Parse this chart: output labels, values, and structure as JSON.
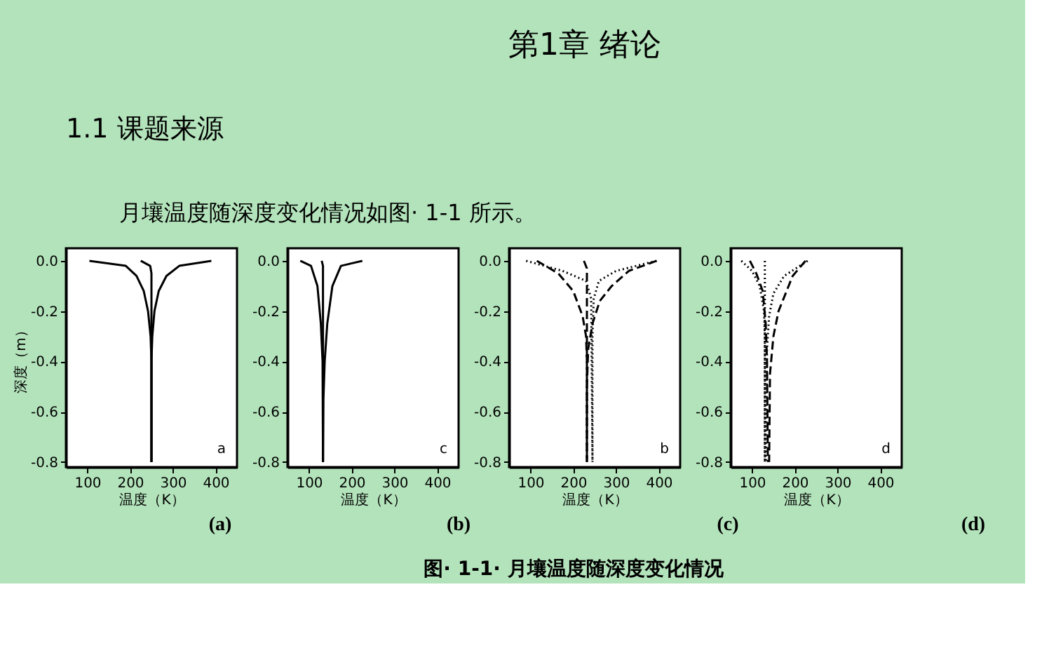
{
  "chart_data": [
    {
      "type": "line",
      "xlabel": "温度（K）",
      "ylabel": "深度（m）",
      "xlim": [
        50,
        450
      ],
      "ylim": [
        -0.82,
        0.05
      ],
      "xticks": [
        100,
        200,
        300,
        400
      ],
      "yticks": [
        {
          "value": 0,
          "label": "0.0"
        },
        {
          "value": -0.2,
          "label": "-0.2"
        },
        {
          "value": -0.4,
          "label": "-0.4"
        },
        {
          "value": -0.6,
          "label": "-0.6"
        },
        {
          "value": -0.8,
          "label": "-0.8"
        }
      ],
      "grid": false,
      "marker": "none",
      "annotations": [
        "a",
        "(a)",
        "第1章  绪论",
        "1.1 课题来源",
        "月壤温度随深度变化情况如图· 1-1 所示。",
        "图· 1-1· 月壤温度随深度变化情况"
      ],
      "series": [
        {
          "color": "#000000",
          "line_style": "solid",
          "x": [
            105,
            190,
            215,
            232,
            242,
            248,
            250,
            250
          ],
          "values": [
            0,
            -0.02,
            -0.06,
            -0.12,
            -0.2,
            -0.3,
            -0.4,
            -0.8
          ]
        },
        {
          "color": "#000000",
          "line_style": "solid",
          "x": [
            390,
            315,
            285,
            267,
            257,
            252,
            250,
            250
          ],
          "values": [
            0,
            -0.02,
            -0.06,
            -0.12,
            -0.2,
            -0.3,
            -0.4,
            -0.8
          ]
        },
        {
          "color": "#000000",
          "line_style": "solid",
          "x": [
            225,
            247,
            250,
            250
          ],
          "values": [
            0,
            -0.02,
            -0.05,
            -0.8
          ]
        }
      ]
    },
    {
      "type": "line",
      "xlabel": "温度（K）",
      "xlim": [
        50,
        450
      ],
      "ylim": [
        -0.82,
        0.05
      ],
      "xticks": [
        100,
        200,
        300,
        400
      ],
      "yticks": [
        {
          "value": 0,
          "label": "0.0"
        },
        {
          "value": -0.2,
          "label": "-0.2"
        },
        {
          "value": -0.4,
          "label": "-0.4"
        },
        {
          "value": -0.6,
          "label": "-0.6"
        },
        {
          "value": -0.8,
          "label": "-0.8"
        }
      ],
      "grid": false,
      "marker": "none",
      "annotations": [
        "c",
        "(b)"
      ],
      "series": [
        {
          "color": "#000000",
          "line_style": "solid",
          "x": [
            80,
            105,
            120,
            128,
            132,
            133
          ],
          "values": [
            0,
            -0.02,
            -0.1,
            -0.25,
            -0.4,
            -0.8
          ]
        },
        {
          "color": "#000000",
          "line_style": "solid",
          "x": [
            225,
            175,
            155,
            143,
            137,
            134,
            133
          ],
          "values": [
            0,
            -0.02,
            -0.1,
            -0.25,
            -0.4,
            -0.55,
            -0.8
          ]
        },
        {
          "color": "#000000",
          "line_style": "solid",
          "x": [
            130,
            133,
            133
          ],
          "values": [
            0,
            -0.02,
            -0.8
          ]
        }
      ]
    },
    {
      "type": "line",
      "xlabel": "温度（K）",
      "xlim": [
        50,
        450
      ],
      "ylim": [
        -0.82,
        0.05
      ],
      "xticks": [
        100,
        200,
        300,
        400
      ],
      "yticks": [
        {
          "value": 0,
          "label": "0.0"
        },
        {
          "value": -0.2,
          "label": "-0.2"
        },
        {
          "value": -0.4,
          "label": "-0.4"
        },
        {
          "value": -0.6,
          "label": "-0.6"
        },
        {
          "value": -0.8,
          "label": "-0.8"
        }
      ],
      "grid": false,
      "marker": "none",
      "annotations": [
        "b",
        "(c)"
      ],
      "series": [
        {
          "color": "#000000",
          "line_style": "dashed",
          "x": [
            115,
            165,
            200,
            222,
            230,
            232,
            232
          ],
          "values": [
            0,
            -0.05,
            -0.12,
            -0.22,
            -0.3,
            -0.4,
            -0.8
          ]
        },
        {
          "color": "#000000",
          "line_style": "dashed",
          "x": [
            395,
            330,
            290,
            262,
            245,
            235,
            232,
            232
          ],
          "values": [
            0,
            -0.04,
            -0.1,
            -0.16,
            -0.25,
            -0.35,
            -0.5,
            -0.8
          ]
        },
        {
          "color": "#000000",
          "line_style": "dotted",
          "x": [
            90,
            175,
            230,
            242,
            245
          ],
          "values": [
            0,
            -0.04,
            -0.08,
            -0.15,
            -0.8
          ]
        },
        {
          "color": "#000000",
          "line_style": "dotted",
          "x": [
            395,
            300,
            260,
            248,
            245,
            245
          ],
          "values": [
            0,
            -0.04,
            -0.08,
            -0.15,
            -0.3,
            -0.8
          ]
        },
        {
          "color": "#000000",
          "line_style": "dashed",
          "x": [
            225,
            232,
            232
          ],
          "values": [
            0,
            -0.03,
            -0.8
          ]
        }
      ]
    },
    {
      "type": "line",
      "xlabel": "温度（K）",
      "xlim": [
        50,
        450
      ],
      "ylim": [
        -0.82,
        0.05
      ],
      "xticks": [
        100,
        200,
        300,
        400
      ],
      "yticks": [
        {
          "value": 0,
          "label": "0.0"
        },
        {
          "value": -0.2,
          "label": "-0.2"
        },
        {
          "value": -0.4,
          "label": "-0.4"
        },
        {
          "value": -0.6,
          "label": "-0.6"
        },
        {
          "value": -0.8,
          "label": "-0.8"
        }
      ],
      "grid": false,
      "marker": "none",
      "annotations": [
        "d",
        "(d)"
      ],
      "series": [
        {
          "color": "#000000",
          "line_style": "dotted",
          "x": [
            75,
            100,
            118,
            128,
            130,
            130
          ],
          "values": [
            0,
            -0.04,
            -0.1,
            -0.2,
            -0.3,
            -0.8
          ]
        },
        {
          "color": "#000000",
          "line_style": "dashed",
          "x": [
            95,
            110,
            125,
            132,
            135,
            137
          ],
          "values": [
            0,
            -0.05,
            -0.12,
            -0.25,
            -0.4,
            -0.8
          ]
        },
        {
          "color": "#000000",
          "line_style": "dotted",
          "x": [
            230,
            175,
            150,
            140,
            135,
            133
          ],
          "values": [
            0,
            -0.06,
            -0.13,
            -0.22,
            -0.35,
            -0.8
          ]
        },
        {
          "color": "#000000",
          "line_style": "dashed",
          "x": [
            225,
            195,
            162,
            150,
            142,
            140
          ],
          "values": [
            0,
            -0.06,
            -0.2,
            -0.3,
            -0.45,
            -0.8
          ]
        },
        {
          "color": "#000000",
          "line_style": "dotted",
          "x": [
            130,
            130
          ],
          "values": [
            0,
            -0.8
          ]
        }
      ]
    }
  ]
}
